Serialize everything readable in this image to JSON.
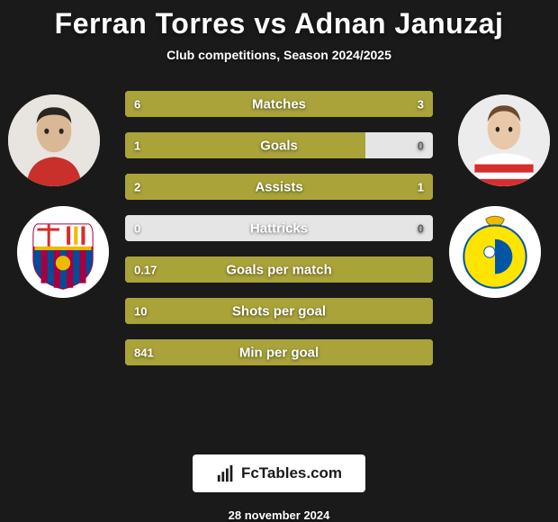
{
  "header": {
    "title": "Ferran Torres vs Adnan Januzaj",
    "subtitle": "Club competitions, Season 2024/2025"
  },
  "players": {
    "left": {
      "name": "Ferran Torres",
      "club": "Barcelona"
    },
    "right": {
      "name": "Adnan Januzaj",
      "club": "Las Palmas"
    }
  },
  "chart": {
    "type": "comparison-bars",
    "background_color": "#1a1a1a",
    "bar_fill_color": "#a9a33a",
    "bar_track_color": "#e5e5e5",
    "text_color": "#ffffff",
    "title_fontsize": 32,
    "subtitle_fontsize": 14,
    "label_fontsize": 15,
    "value_fontsize": 13,
    "stats": [
      {
        "label": "Matches",
        "left_value": "6",
        "right_value": "3",
        "left_pct": 78,
        "right_pct": 22
      },
      {
        "label": "Goals",
        "left_value": "1",
        "right_value": "0",
        "left_pct": 78,
        "right_pct": 0
      },
      {
        "label": "Assists",
        "left_value": "2",
        "right_value": "1",
        "left_pct": 78,
        "right_pct": 22
      },
      {
        "label": "Hattricks",
        "left_value": "0",
        "right_value": "0",
        "left_pct": 0,
        "right_pct": 0
      },
      {
        "label": "Goals per match",
        "left_value": "0.17",
        "right_value": "",
        "left_pct": 100,
        "right_pct": 0
      },
      {
        "label": "Shots per goal",
        "left_value": "10",
        "right_value": "",
        "left_pct": 100,
        "right_pct": 0
      },
      {
        "label": "Min per goal",
        "left_value": "841",
        "right_value": "",
        "left_pct": 100,
        "right_pct": 0
      }
    ]
  },
  "club_colors": {
    "barcelona": {
      "stripes": [
        "#a50044",
        "#004d98"
      ],
      "crest_bg": "#edbb00"
    },
    "laspalmas": {
      "primary": "#ffe400",
      "accent": "#0055a5"
    }
  },
  "brand": {
    "label": "FcTables.com"
  },
  "footer": {
    "date": "28 november 2024"
  }
}
